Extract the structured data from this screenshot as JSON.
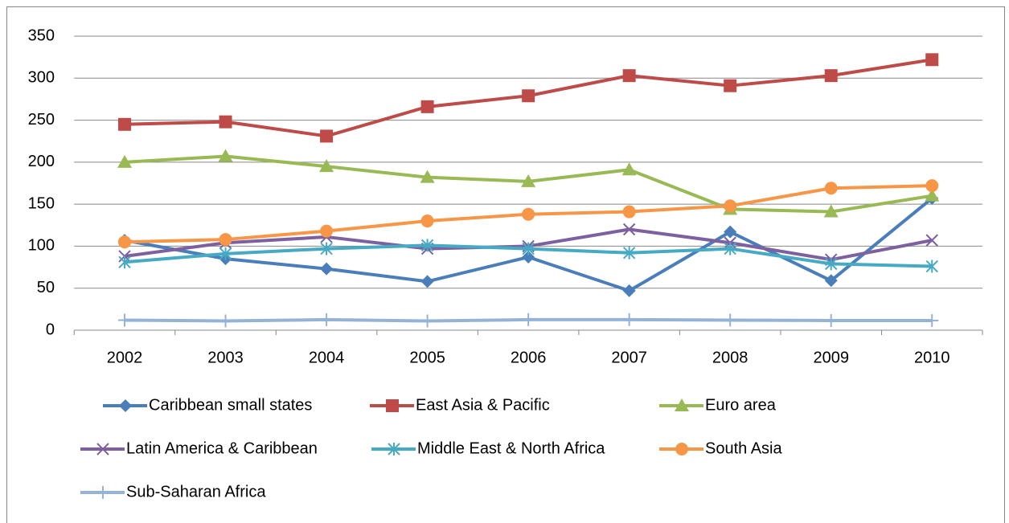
{
  "chart_data": {
    "type": "line",
    "categories": [
      "2002",
      "2003",
      "2004",
      "2005",
      "2006",
      "2007",
      "2008",
      "2009",
      "2010"
    ],
    "ylim": [
      0,
      350
    ],
    "yticks": [
      0,
      50,
      100,
      150,
      200,
      250,
      300,
      350
    ],
    "grid": true,
    "legend": "bottom",
    "series": [
      {
        "name": "Caribbean small states",
        "color": "#4a7ebb",
        "marker": "diamond",
        "values": [
          107,
          85,
          73,
          58,
          87,
          47,
          117,
          59,
          157
        ]
      },
      {
        "name": "East Asia & Pacific",
        "color": "#be4b48",
        "marker": "square",
        "values": [
          245,
          248,
          231,
          266,
          279,
          303,
          291,
          303,
          322
        ]
      },
      {
        "name": "Euro area",
        "color": "#98b954",
        "marker": "triangle",
        "values": [
          200,
          207,
          195,
          182,
          177,
          191,
          144,
          141,
          160
        ]
      },
      {
        "name": "Latin America & Caribbean",
        "color": "#7d60a0",
        "marker": "x",
        "values": [
          88,
          104,
          111,
          97,
          100,
          120,
          104,
          84,
          107
        ]
      },
      {
        "name": "Middle East & North Africa",
        "color": "#46aac5",
        "marker": "asterisk",
        "values": [
          81,
          91,
          97,
          101,
          97,
          92,
          97,
          79,
          76
        ]
      },
      {
        "name": "South Asia",
        "color": "#f79646",
        "marker": "circle",
        "values": [
          105,
          108,
          118,
          130,
          138,
          141,
          148,
          169,
          172
        ]
      },
      {
        "name": "Sub-Saharan Africa",
        "color": "#95b3d7",
        "marker": "plus",
        "values": [
          12,
          11,
          12.5,
          11,
          12.5,
          12.5,
          12,
          11.5,
          11.5
        ]
      }
    ]
  }
}
